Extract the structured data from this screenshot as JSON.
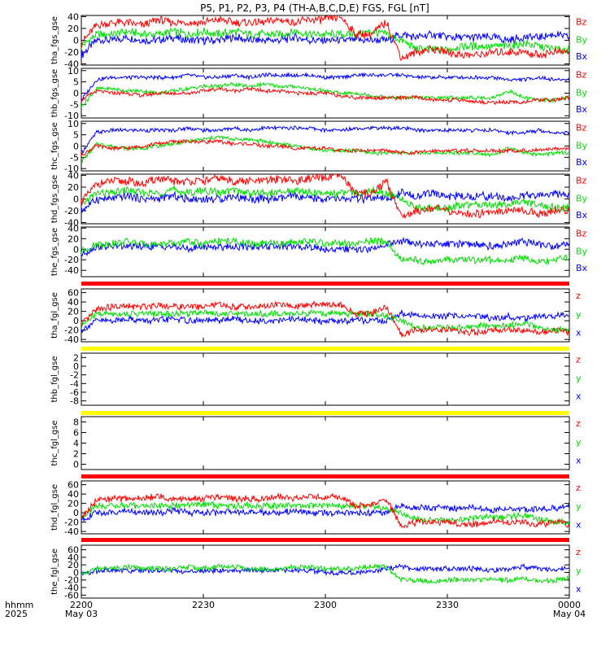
{
  "title": "P5, P1, P2, P3, P4 (TH-A,B,C,D,E) FGS, FGL [nT]",
  "colors": {
    "x": "#0000ff",
    "y": "#00dd00",
    "z": "#ff0000",
    "frame": "#000000",
    "flag_red": "#ff0000",
    "flag_yellow": "#ffff00"
  },
  "time_axis": {
    "row_labels": [
      "hhmm",
      "2025"
    ],
    "ticks": [
      {
        "minute": 0,
        "label": "2200",
        "date": "May 03"
      },
      {
        "minute": 30,
        "label": "2230",
        "date": ""
      },
      {
        "minute": 60,
        "label": "2300",
        "date": ""
      },
      {
        "minute": 90,
        "label": "2330",
        "date": ""
      },
      {
        "minute": 120,
        "label": "0000",
        "date": "May 04"
      }
    ]
  },
  "chart_data": [
    {
      "type": "line",
      "ylabel": "tha_fgs_gse",
      "yticks": [
        40,
        20,
        0,
        -20,
        -40
      ],
      "ylim": [
        -42,
        42
      ],
      "legend": [
        "Bz",
        "By",
        "Bx"
      ],
      "has_data": true,
      "base": {
        "x": 0,
        "y": 0,
        "z": 20
      },
      "amp": 8,
      "series": [
        {
          "name": "Bx",
          "color": "x",
          "values": [
            -25,
            0,
            0,
            5,
            0,
            0,
            5,
            0,
            0,
            0,
            5,
            0,
            0,
            0,
            5,
            0,
            0,
            0,
            0,
            0,
            0,
            10,
            5,
            10,
            5,
            5,
            5,
            5,
            0,
            5,
            5,
            10,
            5
          ]
        },
        {
          "name": "By",
          "color": "y",
          "values": [
            -10,
            10,
            10,
            15,
            10,
            10,
            15,
            10,
            15,
            10,
            15,
            10,
            10,
            10,
            15,
            10,
            10,
            10,
            10,
            15,
            10,
            0,
            -15,
            -15,
            -15,
            -10,
            -10,
            -10,
            -10,
            -5,
            -10,
            -15,
            -15
          ]
        },
        {
          "name": "Bz",
          "color": "z",
          "values": [
            -5,
            25,
            30,
            30,
            25,
            35,
            30,
            30,
            30,
            35,
            30,
            30,
            30,
            35,
            30,
            35,
            35,
            40,
            10,
            10,
            30,
            -30,
            -20,
            -15,
            -20,
            -25,
            -25,
            -20,
            -20,
            -20,
            -25,
            -20,
            -20
          ]
        }
      ]
    },
    {
      "type": "line",
      "ylabel": "thb_fgs_gse",
      "yticks": [
        10,
        5,
        0,
        -5,
        -10
      ],
      "ylim": [
        -11,
        11
      ],
      "legend": [
        "Bz",
        "By",
        "Bx"
      ],
      "has_data": true,
      "amp": 1,
      "series": [
        {
          "name": "Bx",
          "color": "x",
          "values": [
            -3,
            6,
            7,
            7,
            7,
            7,
            7,
            8,
            7,
            7,
            8,
            7,
            8,
            8,
            8,
            8,
            7,
            7,
            8,
            8,
            8,
            8,
            7,
            7,
            7,
            7,
            7,
            7,
            6,
            6,
            7,
            6,
            6
          ]
        },
        {
          "name": "By",
          "color": "y",
          "values": [
            -6,
            2,
            2,
            1,
            1,
            0,
            1,
            2,
            3,
            3,
            4,
            3,
            4,
            3,
            3,
            2,
            1,
            0,
            0,
            -1,
            -2,
            -2,
            -2,
            -2,
            -2,
            -2,
            -2,
            -2,
            1,
            -2,
            -3,
            -3,
            -2
          ]
        },
        {
          "name": "Bz",
          "color": "z",
          "values": [
            -3,
            1,
            0,
            0,
            -1,
            0,
            0,
            0,
            1,
            2,
            1,
            2,
            1,
            1,
            0,
            0,
            0,
            -1,
            -2,
            -2,
            -2,
            -2,
            -2,
            -3,
            -3,
            -3,
            -4,
            -4,
            -4,
            -4,
            -3,
            -3,
            -2
          ]
        }
      ]
    },
    {
      "type": "line",
      "ylabel": "thc_fgs_gse",
      "yticks": [
        10,
        5,
        0,
        -5,
        -10
      ],
      "ylim": [
        -11,
        11
      ],
      "legend": [
        "Bz",
        "By",
        "Bx"
      ],
      "has_data": true,
      "amp": 1,
      "series": [
        {
          "name": "Bx",
          "color": "x",
          "values": [
            -3,
            6,
            7,
            7,
            7,
            7,
            7,
            8,
            7,
            7,
            8,
            7,
            8,
            8,
            8,
            8,
            7,
            7,
            8,
            8,
            8,
            8,
            7,
            7,
            7,
            7,
            7,
            7,
            6,
            6,
            7,
            6,
            6
          ]
        },
        {
          "name": "By",
          "color": "y",
          "values": [
            -7,
            1,
            0,
            -1,
            -1,
            0,
            1,
            2,
            3,
            4,
            3,
            3,
            2,
            1,
            0,
            -1,
            -2,
            -2,
            -2,
            -3,
            -3,
            -3,
            -3,
            -3,
            -3,
            -3,
            -3,
            -4,
            -1,
            -3,
            -4,
            -3,
            -3
          ]
        },
        {
          "name": "Bz",
          "color": "z",
          "values": [
            -4,
            0,
            -1,
            -1,
            0,
            1,
            2,
            2,
            2,
            2,
            1,
            1,
            0,
            0,
            -1,
            -1,
            -1,
            -2,
            -2,
            -2,
            -2,
            -3,
            -3,
            -2,
            -2,
            -2,
            -2,
            -2,
            -2,
            -2,
            -2,
            -1,
            -1
          ]
        }
      ]
    },
    {
      "type": "line",
      "ylabel": "thd_fgs_gse",
      "yticks": [
        40,
        20,
        0,
        -20,
        -40
      ],
      "ylim": [
        -42,
        42
      ],
      "legend": [
        "Bz",
        "By",
        "Bx"
      ],
      "has_data": true,
      "amp": 8,
      "series": [
        {
          "name": "Bx",
          "color": "x",
          "values": [
            -20,
            0,
            0,
            5,
            0,
            0,
            5,
            0,
            0,
            0,
            5,
            0,
            0,
            0,
            5,
            0,
            0,
            0,
            0,
            0,
            0,
            10,
            5,
            10,
            5,
            5,
            5,
            5,
            0,
            5,
            5,
            10,
            5
          ]
        },
        {
          "name": "By",
          "color": "y",
          "values": [
            -10,
            10,
            10,
            15,
            10,
            10,
            15,
            10,
            15,
            10,
            15,
            10,
            10,
            10,
            15,
            10,
            10,
            10,
            10,
            15,
            10,
            0,
            -15,
            -15,
            -15,
            -10,
            -10,
            -10,
            -10,
            -5,
            -10,
            -15,
            -15
          ]
        },
        {
          "name": "Bz",
          "color": "z",
          "values": [
            -5,
            25,
            30,
            30,
            25,
            35,
            30,
            30,
            30,
            35,
            30,
            30,
            30,
            35,
            30,
            35,
            35,
            40,
            10,
            10,
            30,
            -30,
            -20,
            -15,
            -20,
            -25,
            -25,
            -20,
            -20,
            -20,
            -25,
            -20,
            -20
          ]
        }
      ]
    },
    {
      "type": "line",
      "ylabel": "the_fgs_gse",
      "yticks": [
        40,
        20,
        0,
        -20,
        -40
      ],
      "ylim": [
        -52,
        42
      ],
      "legend": [
        "Bz",
        "By",
        "Bx"
      ],
      "has_data": true,
      "amp": 8,
      "series": [
        {
          "name": "Bx",
          "color": "x",
          "values": [
            -10,
            5,
            5,
            5,
            5,
            5,
            5,
            0,
            5,
            5,
            5,
            5,
            5,
            5,
            5,
            5,
            0,
            0,
            0,
            0,
            10,
            15,
            10,
            10,
            10,
            10,
            10,
            5,
            10,
            15,
            10,
            5,
            10
          ]
        },
        {
          "name": "By",
          "color": "y",
          "values": [
            -5,
            10,
            10,
            15,
            10,
            10,
            10,
            15,
            10,
            15,
            15,
            10,
            10,
            10,
            15,
            15,
            10,
            10,
            10,
            15,
            15,
            -20,
            -20,
            -25,
            -20,
            -20,
            -20,
            -20,
            -20,
            -15,
            -25,
            -20,
            -15
          ]
        },
        {
          "name": "Bz",
          "color": "z",
          "values": []
        }
      ]
    },
    {
      "type": "line",
      "ylabel": "tha_fgl_gse",
      "yticks": [
        60,
        40,
        20,
        0,
        -20,
        -40
      ],
      "ylim": [
        -45,
        68
      ],
      "legend": [
        "z",
        "y",
        "x"
      ],
      "has_data": true,
      "amp": 8,
      "flag_color": "flag_red",
      "series": [
        {
          "name": "x",
          "color": "x",
          "values": [
            -20,
            0,
            0,
            5,
            0,
            0,
            5,
            0,
            0,
            0,
            5,
            0,
            0,
            0,
            5,
            0,
            0,
            0,
            0,
            0,
            0,
            15,
            10,
            10,
            10,
            10,
            10,
            5,
            10,
            5,
            10,
            10,
            15
          ]
        },
        {
          "name": "y",
          "color": "y",
          "values": [
            -10,
            15,
            15,
            15,
            15,
            15,
            15,
            15,
            20,
            15,
            15,
            15,
            15,
            15,
            15,
            15,
            15,
            15,
            15,
            15,
            10,
            0,
            -15,
            -15,
            -15,
            -15,
            -10,
            -10,
            -10,
            -5,
            -15,
            -20,
            -20
          ]
        },
        {
          "name": "z",
          "color": "z",
          "values": [
            -10,
            25,
            30,
            30,
            30,
            35,
            30,
            30,
            30,
            35,
            30,
            30,
            30,
            35,
            30,
            35,
            35,
            35,
            15,
            15,
            30,
            -30,
            -20,
            -20,
            -20,
            -25,
            -25,
            -20,
            -20,
            -20,
            -25,
            -20,
            -25
          ]
        }
      ]
    },
    {
      "type": "line",
      "ylabel": "thb_fgl_gse",
      "yticks": [
        2,
        0,
        -2,
        -4,
        -6,
        -8
      ],
      "ylim": [
        -9,
        3
      ],
      "legend": [
        "z",
        "y",
        "x"
      ],
      "has_data": false,
      "flag_color": "flag_yellow",
      "series": []
    },
    {
      "type": "line",
      "ylabel": "thc_fgl_gse",
      "yticks": [
        8,
        6,
        4,
        2,
        0
      ],
      "ylim": [
        -1,
        9
      ],
      "legend": [
        "z",
        "y",
        "x"
      ],
      "has_data": false,
      "flag_color": "flag_yellow",
      "series": []
    },
    {
      "type": "line",
      "ylabel": "thd_fgl_gse",
      "yticks": [
        60,
        40,
        20,
        0,
        -20,
        -40
      ],
      "ylim": [
        -45,
        68
      ],
      "legend": [
        "z",
        "y",
        "x"
      ],
      "has_data": true,
      "amp": 8,
      "flag_color": "flag_red",
      "series": [
        {
          "name": "x",
          "color": "x",
          "values": [
            -15,
            0,
            0,
            5,
            0,
            0,
            5,
            0,
            0,
            0,
            5,
            0,
            0,
            0,
            5,
            0,
            0,
            0,
            0,
            0,
            0,
            15,
            10,
            10,
            10,
            10,
            10,
            5,
            10,
            5,
            10,
            10,
            15
          ]
        },
        {
          "name": "y",
          "color": "y",
          "values": [
            -10,
            15,
            15,
            15,
            15,
            15,
            15,
            15,
            20,
            15,
            15,
            15,
            15,
            15,
            15,
            15,
            15,
            15,
            15,
            15,
            10,
            0,
            -15,
            -15,
            -15,
            -15,
            -10,
            -10,
            -10,
            -5,
            -15,
            -20,
            -20
          ]
        },
        {
          "name": "z",
          "color": "z",
          "values": [
            -10,
            25,
            30,
            30,
            30,
            35,
            30,
            30,
            30,
            35,
            30,
            30,
            30,
            35,
            30,
            35,
            35,
            35,
            15,
            15,
            30,
            -30,
            -20,
            -20,
            -20,
            -25,
            -25,
            -20,
            -20,
            -20,
            -25,
            -20,
            -25
          ]
        }
      ]
    },
    {
      "type": "line",
      "ylabel": "the_fgl_gse",
      "yticks": [
        60,
        40,
        20,
        0,
        -20,
        -40,
        -60
      ],
      "ylim": [
        -68,
        72
      ],
      "legend": [
        "z",
        "y",
        "x"
      ],
      "has_data": true,
      "amp": 8,
      "flag_color": "flag_red",
      "series": [
        {
          "name": "x",
          "color": "x",
          "values": [
            -5,
            5,
            5,
            5,
            5,
            5,
            5,
            0,
            5,
            5,
            5,
            5,
            5,
            5,
            5,
            5,
            0,
            0,
            0,
            0,
            10,
            15,
            10,
            10,
            10,
            10,
            10,
            5,
            10,
            15,
            10,
            5,
            10
          ]
        },
        {
          "name": "y",
          "color": "y",
          "values": [
            -5,
            10,
            10,
            15,
            10,
            10,
            10,
            15,
            10,
            15,
            15,
            10,
            10,
            10,
            15,
            15,
            10,
            10,
            10,
            15,
            15,
            -20,
            -20,
            -25,
            -20,
            -20,
            -20,
            -20,
            -20,
            -15,
            -25,
            -20,
            -15
          ]
        },
        {
          "name": "z",
          "color": "z",
          "values": []
        }
      ]
    }
  ]
}
